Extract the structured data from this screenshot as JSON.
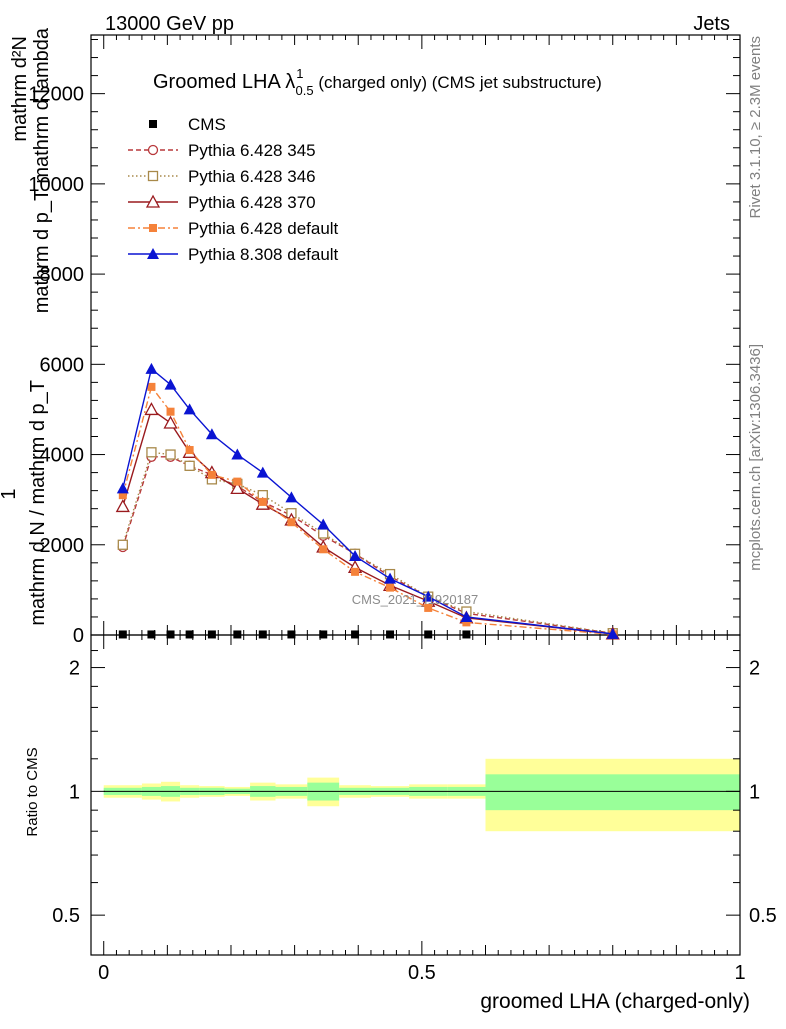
{
  "header": {
    "left": "13000 GeV pp",
    "right": "Jets"
  },
  "side_labels": {
    "rivet": "Rivet 3.1.10, ≥ 2.3M events",
    "mcplots": "mcplots.cern.ch [arXiv:1306.3436]"
  },
  "watermark": "CMS_2021_I1920187",
  "title": {
    "main": "Groomed LHA ",
    "lambda": "λ",
    "sup": "1",
    "sub": "0.5",
    "suffix": "  (charged only) (CMS jet substructure)"
  },
  "ylabel_lines": [
    "mathrm d²N",
    "mathrm d p_T mathrm d lambda",
    "1",
    "mathrm d N / mathrm d p_T"
  ],
  "ratio_ylabel": "Ratio to CMS",
  "xlabel": "groomed LHA (charged-only)",
  "colors": {
    "cms": "#000000",
    "p345": "#b8383b",
    "p346": "#a8894a",
    "p370": "#9a1a1e",
    "p6def": "#f5823a",
    "p8def": "#0a14d2",
    "band_inner": "#99ff99",
    "band_outer": "#ffff99"
  },
  "chart_data": {
    "type": "line",
    "x": [
      0.03,
      0.075,
      0.105,
      0.135,
      0.17,
      0.21,
      0.25,
      0.295,
      0.345,
      0.395,
      0.45,
      0.51,
      0.57,
      0.8
    ],
    "xlim": [
      -0.02,
      1.0
    ],
    "ylim": [
      0,
      13300
    ],
    "yticks": [
      2000,
      4000,
      6000,
      8000,
      10000,
      12000
    ],
    "xticks": [
      0,
      0.5,
      1
    ],
    "series": [
      {
        "name": "CMS",
        "key": "cms",
        "style": "cms",
        "values": [
          12,
          12,
          12,
          12,
          12,
          12,
          12,
          12,
          12,
          12,
          12,
          12,
          12,
          null
        ]
      },
      {
        "name": "Pythia 6.428 345",
        "key": "p345",
        "style": "circle-open",
        "dash": "5,3",
        "values": [
          1950,
          3950,
          3950,
          3750,
          3550,
          3300,
          2950,
          2650,
          2200,
          1800,
          1300,
          850,
          480,
          40
        ]
      },
      {
        "name": "Pythia 6.428 346",
        "key": "p346",
        "style": "square-open",
        "dash": "1.5,2.5",
        "values": [
          2000,
          4050,
          4000,
          3750,
          3450,
          3350,
          3100,
          2700,
          2250,
          1800,
          1350,
          850,
          520,
          40
        ]
      },
      {
        "name": "Pythia 6.428 370",
        "key": "p370",
        "style": "triangle-open",
        "dash": "",
        "values": [
          2850,
          5000,
          4700,
          4050,
          3600,
          3250,
          2900,
          2550,
          1950,
          1500,
          1100,
          750,
          380,
          25
        ]
      },
      {
        "name": "Pythia 6.428 default",
        "key": "p6def",
        "style": "square-filled",
        "dash": "7,3,2,3",
        "values": [
          3100,
          5500,
          4950,
          4100,
          3550,
          3400,
          2950,
          2500,
          1900,
          1400,
          1050,
          600,
          280,
          15
        ]
      },
      {
        "name": "Pythia 8.308 default",
        "key": "p8def",
        "style": "triangle-filled",
        "dash": "",
        "values": [
          3250,
          5900,
          5550,
          5000,
          4450,
          4000,
          3600,
          3050,
          2450,
          1750,
          1250,
          850,
          400,
          25
        ]
      }
    ],
    "ratio": {
      "ylim": [
        0.4,
        2.4
      ],
      "yticks": [
        0.5,
        1,
        2
      ],
      "edges": [
        0.0,
        0.06,
        0.09,
        0.12,
        0.15,
        0.19,
        0.23,
        0.27,
        0.32,
        0.37,
        0.42,
        0.48,
        0.54,
        0.6,
        1.0
      ],
      "inner": [
        0.02,
        0.025,
        0.03,
        0.02,
        0.02,
        0.015,
        0.03,
        0.025,
        0.05,
        0.02,
        0.02,
        0.025,
        0.025,
        0.1
      ],
      "outer": [
        0.035,
        0.045,
        0.055,
        0.035,
        0.03,
        0.025,
        0.05,
        0.04,
        0.08,
        0.035,
        0.03,
        0.04,
        0.04,
        0.2
      ]
    }
  }
}
